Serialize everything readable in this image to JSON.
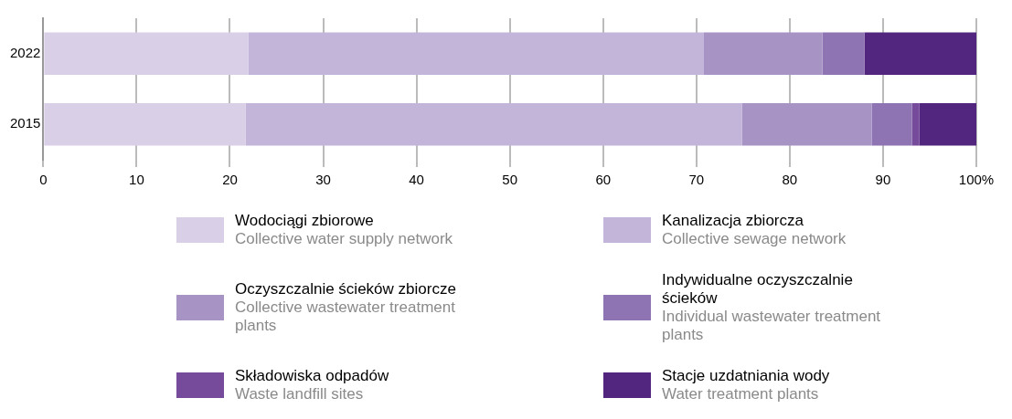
{
  "chart_data": {
    "type": "bar",
    "orientation": "horizontal",
    "stacked": true,
    "categories": [
      "2022",
      "2015"
    ],
    "series": [
      {
        "name": "Wodociągi zbiorowe\nCollective water supply network",
        "color": "#d9d0e8",
        "values": [
          22.0,
          21.7
        ]
      },
      {
        "name": "Kanalizacja zbiorcza\nCollective sewage network",
        "color": "#c3b4d9",
        "values": [
          48.8,
          53.2
        ]
      },
      {
        "name": "Oczyszczalnie ścieków zbiorcze\nCollective wastewater treatment plants",
        "color": "#a794c5",
        "values": [
          12.7,
          13.9
        ]
      },
      {
        "name": "Indywidualne oczyszczalnie ścieków\nIndividual wastewater treatment plants",
        "color": "#8e74b2",
        "values": [
          4.5,
          4.3
        ]
      },
      {
        "name": "Składowiska odpadów\nWaste landfill sites",
        "color": "#764b9c",
        "values": [
          0,
          0.8
        ]
      },
      {
        "name": "Stacje uzdatniania wody\nWater treatment plants",
        "color": "#52267f",
        "values": [
          12.0,
          6.1
        ]
      }
    ],
    "xlim": [
      0,
      100
    ],
    "xticks": [
      0,
      10,
      20,
      30,
      40,
      50,
      60,
      70,
      80,
      90,
      {
        "value": 100,
        "label": "100%"
      }
    ],
    "grid": "x",
    "legend": "bottom"
  }
}
